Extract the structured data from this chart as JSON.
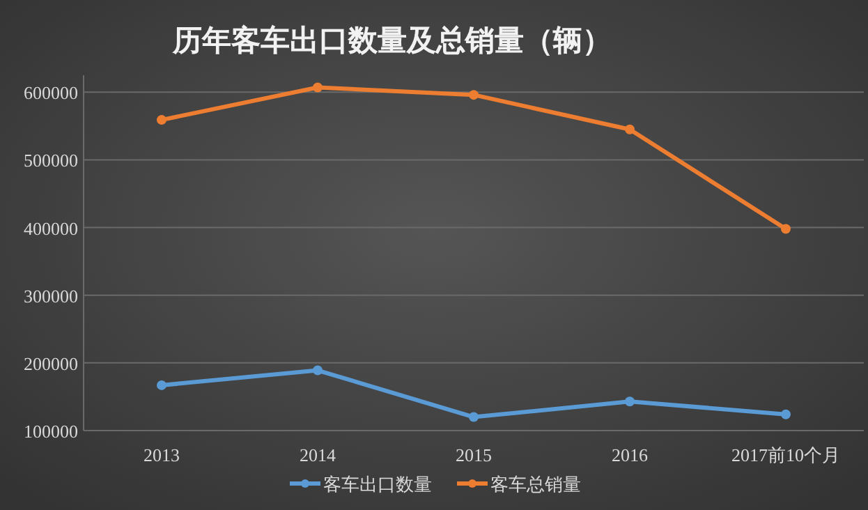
{
  "chart_data": {
    "type": "line",
    "title": "历年客车出口数量及总销量（辆）",
    "categories": [
      "2013",
      "2014",
      "2015",
      "2016",
      "2017前10个月"
    ],
    "series": [
      {
        "name": "客车出口数量",
        "color": "#5b9bd5",
        "values": [
          167000,
          189000,
          120000,
          143000,
          124000
        ]
      },
      {
        "name": "客车总销量",
        "color": "#ed7d31",
        "values": [
          559000,
          607000,
          596000,
          545000,
          398000
        ]
      }
    ],
    "ylim": [
      100000,
      625000
    ],
    "yticks": [
      100000,
      200000,
      300000,
      400000,
      500000,
      600000
    ],
    "grid": "y",
    "legend": "bottom",
    "marker": "circle",
    "line_style": "solid"
  }
}
